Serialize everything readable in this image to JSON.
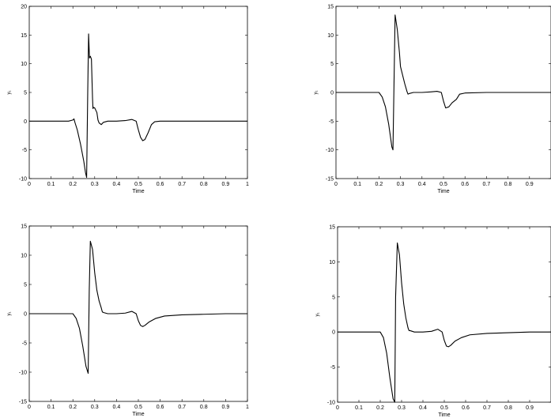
{
  "chart_data": [
    {
      "type": "line",
      "xlabel": "Time",
      "ylabel": "y₁",
      "xlim": [
        0,
        1
      ],
      "ylim": [
        -10,
        20
      ],
      "xticks": [
        "0",
        "0.1",
        "0.2",
        "0.3",
        "0.4",
        "0.5",
        "0.6",
        "0.7",
        "0.8",
        "0.9",
        "1"
      ],
      "yticks": [
        "-10",
        "-5",
        "0",
        "5",
        "10",
        "15",
        "20"
      ],
      "series": [
        {
          "x": [
            0,
            0.18,
            0.2,
            0.205,
            0.21,
            0.22,
            0.235,
            0.25,
            0.258,
            0.263,
            0.268,
            0.272,
            0.276,
            0.28,
            0.285,
            0.29,
            0.292,
            0.295,
            0.3,
            0.31,
            0.315,
            0.32,
            0.33,
            0.34,
            0.36,
            0.4,
            0.44,
            0.47,
            0.49,
            0.5,
            0.51,
            0.52,
            0.53,
            0.545,
            0.56,
            0.575,
            0.6,
            0.7,
            0.8,
            0.9,
            1.0
          ],
          "y": [
            0,
            0,
            0.2,
            0.4,
            -0.3,
            -1.5,
            -4,
            -7,
            -9,
            -9.8,
            5,
            15.2,
            11,
            11.3,
            10.8,
            4,
            2.2,
            2.4,
            2.3,
            1.5,
            0.2,
            -0.3,
            -0.6,
            -0.2,
            0,
            0,
            0.1,
            0.3,
            0,
            -1.5,
            -2.8,
            -3.4,
            -3.2,
            -2,
            -0.6,
            -0.1,
            0,
            0,
            0,
            0,
            0
          ]
        }
      ]
    },
    {
      "type": "line",
      "xlabel": "Time",
      "ylabel": "y₁",
      "xlim": [
        0,
        1
      ],
      "ylim": [
        -15,
        15
      ],
      "xticks": [
        "0",
        "0.1",
        "0.2",
        "0.3",
        "0.4",
        "0.5",
        "0.6",
        "0.7",
        "0.8",
        "0.9"
      ],
      "yticks": [
        "-15",
        "-10",
        "-5",
        "0",
        "5",
        "10",
        "15"
      ],
      "series": [
        {
          "x": [
            0,
            0.2,
            0.215,
            0.23,
            0.245,
            0.26,
            0.265,
            0.275,
            0.285,
            0.295,
            0.3,
            0.31,
            0.32,
            0.33,
            0.335,
            0.34,
            0.36,
            0.4,
            0.44,
            0.47,
            0.49,
            0.5,
            0.51,
            0.525,
            0.54,
            0.56,
            0.575,
            0.6,
            0.7,
            0.8,
            0.9,
            1.0
          ],
          "y": [
            0,
            0,
            -0.8,
            -2.5,
            -5.5,
            -9.5,
            -10,
            13.5,
            11,
            7,
            4.5,
            3,
            1.5,
            0.2,
            -0.3,
            -0.2,
            0,
            0,
            0.1,
            0.2,
            0,
            -1.5,
            -2.7,
            -2.5,
            -1.8,
            -1.2,
            -0.3,
            -0.1,
            0,
            0,
            0,
            0
          ]
        }
      ]
    },
    {
      "type": "line",
      "xlabel": "Time",
      "ylabel": "y₁",
      "xlim": [
        0,
        1
      ],
      "ylim": [
        -15,
        15
      ],
      "xticks": [
        "0",
        "0.1",
        "0.2",
        "0.3",
        "0.4",
        "0.5",
        "0.6",
        "0.7",
        "0.8",
        "0.9",
        "1"
      ],
      "yticks": [
        "-15",
        "-10",
        "-5",
        "0",
        "5",
        "10",
        "15"
      ],
      "series": [
        {
          "x": [
            0,
            0.2,
            0.215,
            0.23,
            0.245,
            0.26,
            0.27,
            0.275,
            0.28,
            0.29,
            0.3,
            0.31,
            0.32,
            0.33,
            0.335,
            0.34,
            0.36,
            0.4,
            0.44,
            0.47,
            0.49,
            0.5,
            0.51,
            0.52,
            0.53,
            0.55,
            0.58,
            0.62,
            0.7,
            0.8,
            0.9,
            1.0
          ],
          "y": [
            0,
            0,
            -0.8,
            -2.5,
            -5.5,
            -9,
            -10.2,
            4,
            12.4,
            11,
            7,
            4,
            2.2,
            1,
            0.3,
            0.2,
            0,
            0,
            0.1,
            0.4,
            0,
            -1.2,
            -2,
            -2.2,
            -2,
            -1.4,
            -0.8,
            -0.4,
            -0.2,
            -0.1,
            0,
            0
          ]
        }
      ]
    },
    {
      "type": "line",
      "xlabel": "Time",
      "ylabel": "y₁",
      "xlim": [
        0,
        1
      ],
      "ylim": [
        -10,
        15
      ],
      "xticks": [
        "0",
        "0.1",
        "0.2",
        "0.3",
        "0.4",
        "0.5",
        "0.6",
        "0.7",
        "0.8",
        "0.9"
      ],
      "yticks": [
        "-10",
        "-5",
        "0",
        "5",
        "10",
        "15"
      ],
      "series": [
        {
          "x": [
            0,
            0.2,
            0.215,
            0.23,
            0.245,
            0.26,
            0.268,
            0.272,
            0.28,
            0.29,
            0.3,
            0.31,
            0.32,
            0.33,
            0.335,
            0.34,
            0.36,
            0.4,
            0.44,
            0.47,
            0.49,
            0.5,
            0.51,
            0.52,
            0.53,
            0.55,
            0.58,
            0.62,
            0.7,
            0.8,
            0.9,
            1.0
          ],
          "y": [
            0,
            0,
            -0.8,
            -3,
            -6.5,
            -9.5,
            -10,
            5,
            12.7,
            11,
            7,
            4,
            2,
            0.6,
            0.2,
            0.2,
            0,
            0,
            0.1,
            0.4,
            0,
            -1.2,
            -2,
            -2.1,
            -1.9,
            -1.3,
            -0.8,
            -0.4,
            -0.2,
            -0.1,
            0,
            0
          ]
        }
      ]
    }
  ]
}
